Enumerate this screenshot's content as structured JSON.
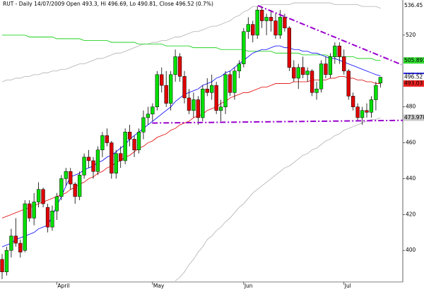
{
  "chart_data": {
    "type": "candlestick",
    "title": "RUT - Daily 14/07/2009 Open 493.3, Hi 496.69, Lo 490.81, Close 496.52 (0.7%)",
    "categories": [
      null,
      null,
      null,
      null,
      null,
      null,
      null,
      null,
      null,
      null,
      null,
      null,
      "April",
      null,
      null,
      null,
      null,
      null,
      null,
      null,
      null,
      null,
      null,
      null,
      null,
      null,
      null,
      null,
      null,
      null,
      null,
      null,
      null,
      "May",
      null,
      null,
      null,
      null,
      null,
      null,
      null,
      null,
      null,
      null,
      null,
      null,
      null,
      null,
      null,
      null,
      null,
      null,
      null,
      "Jun",
      null,
      null,
      null,
      null,
      null,
      null,
      null,
      null,
      null,
      null,
      null,
      null,
      null,
      null,
      null,
      null,
      null,
      null,
      null,
      null,
      null,
      "Jul",
      null,
      null,
      null,
      null,
      null,
      null,
      null,
      null
    ],
    "open": [
      395,
      388,
      400,
      408,
      404,
      400,
      426,
      418,
      427,
      434,
      424,
      413,
      422,
      430,
      440,
      444,
      437,
      430,
      442,
      452,
      450,
      444,
      456,
      464,
      460,
      443,
      454,
      450,
      466,
      462,
      456,
      466,
      474,
      476,
      480,
      498,
      492,
      482,
      498,
      508,
      497,
      485,
      478,
      484,
      474,
      490,
      488,
      492,
      478,
      480,
      498,
      488,
      500,
      504,
      522,
      526,
      520,
      534,
      528,
      530,
      528,
      520,
      530,
      524,
      502,
      496,
      502,
      498,
      500,
      488,
      490,
      504,
      498,
      508,
      514,
      508,
      500,
      486,
      480,
      474,
      478,
      477,
      484,
      493.3
    ],
    "high": [
      398,
      402,
      412,
      418,
      406,
      428,
      428,
      432,
      438,
      435,
      426,
      425,
      432,
      442,
      446,
      446,
      438,
      444,
      454,
      456,
      452,
      458,
      466,
      468,
      461,
      456,
      458,
      468,
      470,
      464,
      468,
      478,
      480,
      482,
      500,
      502,
      500,
      500,
      512,
      510,
      500,
      490,
      488,
      486,
      492,
      496,
      498,
      494,
      484,
      500,
      500,
      502,
      506,
      524,
      530,
      528,
      536,
      536,
      532,
      534,
      532,
      534,
      532,
      525,
      506,
      504,
      508,
      502,
      501,
      494,
      506,
      508,
      510,
      516,
      516,
      512,
      501,
      488,
      482,
      480,
      482,
      486,
      494,
      496.69
    ],
    "low": [
      384,
      386,
      396,
      402,
      396,
      399,
      416,
      414,
      424,
      424,
      410,
      411,
      417,
      428,
      436,
      434,
      426,
      428,
      440,
      446,
      440,
      442,
      452,
      458,
      440,
      440,
      446,
      448,
      458,
      452,
      454,
      462,
      470,
      472,
      478,
      488,
      480,
      478,
      494,
      494,
      482,
      476,
      474,
      470,
      472,
      486,
      484,
      476,
      472,
      476,
      486,
      484,
      496,
      502,
      518,
      516,
      518,
      524,
      520,
      522,
      518,
      518,
      522,
      500,
      494,
      490,
      496,
      494,
      486,
      484,
      488,
      496,
      496,
      504,
      504,
      498,
      484,
      478,
      472,
      470,
      474,
      474,
      478,
      490.81
    ],
    "close": [
      388,
      400,
      408,
      404,
      399,
      426,
      418,
      427,
      434,
      426,
      413,
      422,
      430,
      440,
      444,
      437,
      430,
      442,
      452,
      450,
      444,
      456,
      464,
      460,
      443,
      454,
      450,
      466,
      462,
      456,
      466,
      474,
      476,
      480,
      498,
      492,
      482,
      498,
      508,
      497,
      485,
      478,
      484,
      474,
      490,
      488,
      492,
      478,
      480,
      498,
      488,
      500,
      504,
      522,
      526,
      520,
      534,
      528,
      530,
      528,
      520,
      530,
      524,
      502,
      496,
      502,
      498,
      500,
      488,
      490,
      504,
      498,
      508,
      514,
      508,
      500,
      486,
      480,
      474,
      478,
      477,
      484,
      492,
      496.52
    ],
    "up_color": "#00e000",
    "down_color": "#e00000",
    "lines": [
      {
        "color": "#b0b0b0",
        "values": [
          494,
          495,
          495,
          496,
          496,
          497,
          497,
          498,
          498,
          499,
          499,
          500,
          500,
          501,
          501,
          502,
          503,
          504,
          504,
          505,
          506,
          507,
          507,
          508,
          509,
          510,
          510,
          511,
          512,
          513,
          514,
          515,
          515,
          516,
          516,
          517,
          517,
          518,
          519,
          519,
          520,
          521,
          522,
          522,
          523,
          524,
          525,
          525,
          526,
          527,
          528,
          530,
          531,
          533,
          534,
          536,
          536,
          537,
          537,
          537,
          537,
          537,
          537,
          537,
          538,
          538,
          538,
          538,
          538,
          538,
          538,
          538,
          538,
          537,
          537,
          537,
          537,
          537,
          537,
          536,
          536,
          536,
          536,
          535
        ]
      },
      {
        "color": "#b0b0b0",
        "values": [
          null,
          null,
          null,
          null,
          null,
          null,
          null,
          null,
          null,
          null,
          null,
          null,
          null,
          null,
          null,
          null,
          null,
          null,
          null,
          null,
          null,
          null,
          null,
          null,
          null,
          null,
          null,
          null,
          null,
          null,
          null,
          null,
          null,
          null,
          null,
          null,
          null,
          null,
          383,
          385,
          388,
          392,
          395,
          399,
          402,
          406,
          408,
          411,
          413,
          416,
          418,
          421,
          424,
          426,
          429,
          432,
          434,
          436,
          438,
          440,
          442,
          444,
          446,
          447,
          449,
          451,
          453,
          454,
          456,
          457,
          459,
          461,
          462,
          464,
          465,
          467,
          468,
          469,
          470,
          471,
          472,
          473,
          473,
          474
        ]
      },
      {
        "color": "#00cc00",
        "values": [
          520,
          520,
          520,
          520,
          520,
          520,
          519,
          519,
          519,
          519,
          519,
          519,
          518,
          518,
          518,
          518,
          518,
          518,
          517,
          517,
          517,
          517,
          517,
          517,
          516,
          516,
          516,
          516,
          516,
          516,
          515,
          515,
          515,
          515,
          515,
          515,
          514,
          514,
          514,
          514,
          514,
          514,
          513,
          513,
          513,
          513,
          513,
          513,
          512,
          512,
          512,
          512,
          512,
          512,
          511,
          511,
          511,
          511,
          511,
          511,
          510,
          510,
          510,
          510,
          510,
          510,
          509,
          509,
          509,
          509,
          509,
          509,
          508,
          508,
          508,
          508,
          508,
          508,
          507,
          507,
          507,
          507,
          506,
          506
        ]
      },
      {
        "color": "#e00000",
        "values": [
          418,
          419,
          420,
          421,
          422,
          423,
          424,
          425,
          426,
          427,
          428,
          429,
          430,
          431,
          432,
          434,
          435,
          437,
          438,
          440,
          441,
          443,
          444,
          446,
          447,
          449,
          450,
          452,
          453,
          455,
          457,
          458,
          460,
          461,
          463,
          464,
          465,
          467,
          468,
          470,
          471,
          472,
          474,
          475,
          476,
          478,
          479,
          480,
          482,
          483,
          485,
          486,
          487,
          488,
          488,
          489,
          490,
          491,
          491,
          492,
          493,
          493,
          493,
          493,
          494,
          494,
          494,
          494,
          495,
          495,
          495,
          495,
          496,
          496,
          497,
          497,
          496,
          496,
          495,
          495,
          494,
          494,
          493,
          493
        ]
      },
      {
        "color": "#0000ff",
        "values": [
          402,
          403,
          404,
          406,
          407,
          408,
          409,
          410,
          412,
          413,
          414,
          419,
          425,
          430,
          436,
          441,
          442,
          443,
          445,
          446,
          447,
          449,
          450,
          452,
          453,
          455,
          457,
          459,
          462,
          464,
          466,
          468,
          470,
          472,
          474,
          476,
          478,
          480,
          483,
          485,
          487,
          488,
          489,
          490,
          492,
          493,
          494,
          496,
          497,
          499,
          500,
          502,
          504,
          506,
          508,
          510,
          511,
          512,
          512,
          513,
          514,
          514,
          513,
          513,
          512,
          512,
          511,
          511,
          510,
          510,
          509,
          508,
          507,
          507,
          506,
          505,
          504,
          503,
          502,
          501,
          500,
          499,
          498,
          497.3
        ]
      }
    ],
    "trendlines": [
      {
        "color": "#9900cc",
        "points": [
          {
            "x": 56.1,
            "y": 536.5
          },
          {
            "x": 87.6,
            "y": 503.6
          }
        ]
      },
      {
        "color": "#9900cc",
        "points": [
          {
            "x": 32.9,
            "y": 471
          },
          {
            "x": 87.9,
            "y": 472.5
          }
        ]
      }
    ],
    "price_labels": [
      {
        "value": 536.45,
        "label": "536.45",
        "color": "#ffffff"
      },
      {
        "value": 505.891,
        "label": "505.891",
        "color": "#33dd33"
      },
      {
        "value": 497.302,
        "label": "497.302",
        "color": "#2222ff"
      },
      {
        "value": 496.52,
        "label": "496.52",
        "color": "#ffffff"
      },
      {
        "value": 493.03,
        "label": "493.03",
        "color": "#ee2222"
      },
      {
        "value": 473.978,
        "label": "473.978",
        "color": "#c8c8c8"
      }
    ],
    "ylim": [
      382.4,
      539.6
    ],
    "yticks": [
      400,
      420,
      440,
      460,
      480,
      520
    ]
  }
}
